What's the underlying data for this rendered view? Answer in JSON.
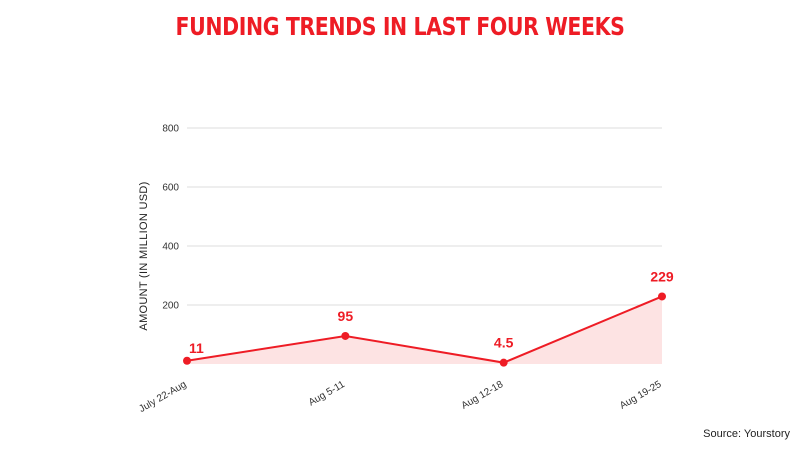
{
  "chart_data": {
    "type": "line",
    "title": "FUNDING TRENDS IN LAST FOUR WEEKS",
    "ylabel": "AMOUNT (IN MILLION USD)",
    "xlabel": "",
    "categories": [
      "July 22-Aug",
      "Aug 5-11",
      "Aug 12-18",
      "Aug 19-25"
    ],
    "values": [
      11,
      95,
      4.5,
      229
    ],
    "data_labels": [
      "11",
      "95",
      "4.5",
      "229"
    ],
    "yticks": [
      200,
      400,
      600,
      800
    ],
    "ytick_labels": [
      "200",
      "400",
      "600",
      "800"
    ],
    "ylim": [
      0,
      800
    ],
    "grid": true,
    "area_fill": true,
    "colors": {
      "title": "#ee1c25",
      "line": "#ee1c25",
      "fill": "#fde3e3",
      "grid": "#dddddd",
      "label": "#ee1c25"
    }
  },
  "source": "Source: Yourstory"
}
